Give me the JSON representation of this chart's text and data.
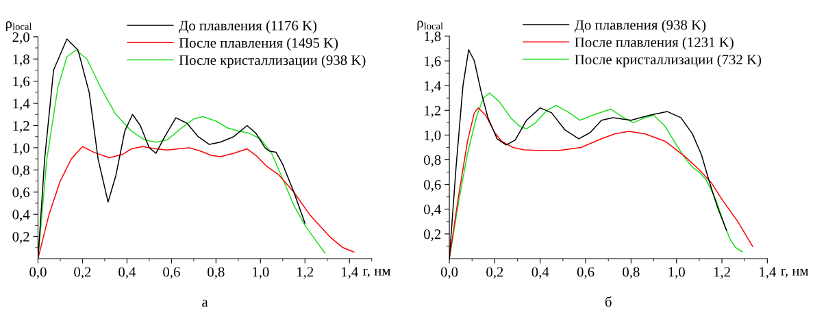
{
  "chart_data": [
    {
      "type": "line",
      "ylabel": "ρ$_{local}$",
      "xlabel": "r, нм",
      "annotations": [
        "а"
      ],
      "legend": "top right",
      "grid": false,
      "xlim": [
        0,
        1.5
      ],
      "xticks": [
        {
          "value": 0,
          "label": "0,0"
        },
        {
          "value": 0.2,
          "label": "0,2"
        },
        {
          "value": 0.4,
          "label": "0,4"
        },
        {
          "value": 0.6,
          "label": "0,6"
        },
        {
          "value": 0.8,
          "label": "0,8"
        },
        {
          "value": 1.0,
          "label": "1,0"
        },
        {
          "value": 1.2,
          "label": "1,2"
        },
        {
          "value": 1.4,
          "label": "1,4"
        }
      ],
      "ylim": [
        0,
        2.0
      ],
      "yticks": [
        {
          "value": 0.2,
          "label": "0,2"
        },
        {
          "value": 0.4,
          "label": "0,4"
        },
        {
          "value": 0.6,
          "label": "0,6"
        },
        {
          "value": 0.8,
          "label": "0,8"
        },
        {
          "value": 1.0,
          "label": "1,0"
        },
        {
          "value": 1.2,
          "label": "1,2"
        },
        {
          "value": 1.4,
          "label": "1,4"
        },
        {
          "value": 1.6,
          "label": "1,6"
        },
        {
          "value": 1.8,
          "label": "1,8"
        },
        {
          "value": 2.0,
          "label": "2,0"
        }
      ],
      "series": [
        {
          "name": "До плавления (1176 K)",
          "color": "#000000",
          "x": [
            0,
            0.03,
            0.07,
            0.13,
            0.18,
            0.23,
            0.27,
            0.315,
            0.35,
            0.39,
            0.425,
            0.46,
            0.5,
            0.53,
            0.57,
            0.62,
            0.67,
            0.72,
            0.77,
            0.82,
            0.88,
            0.94,
            0.98,
            1.02,
            1.04,
            1.07,
            1.1,
            1.15,
            1.2
          ],
          "values": [
            0,
            0.9,
            1.7,
            1.98,
            1.88,
            1.5,
            0.9,
            0.51,
            0.75,
            1.15,
            1.3,
            1.2,
            1.0,
            0.95,
            1.1,
            1.27,
            1.22,
            1.1,
            1.03,
            1.05,
            1.1,
            1.2,
            1.13,
            1.0,
            0.97,
            0.96,
            0.85,
            0.6,
            0.32
          ]
        },
        {
          "name": "После плавления (1495 K)",
          "color": "#ff0000",
          "x": [
            0,
            0.05,
            0.1,
            0.15,
            0.2,
            0.25,
            0.32,
            0.38,
            0.42,
            0.47,
            0.53,
            0.58,
            0.63,
            0.68,
            0.73,
            0.78,
            0.82,
            0.88,
            0.94,
            0.98,
            1.03,
            1.08,
            1.15,
            1.22,
            1.31,
            1.37,
            1.42
          ],
          "values": [
            0,
            0.4,
            0.7,
            0.9,
            1.01,
            0.96,
            0.91,
            0.94,
            0.99,
            1.01,
            0.99,
            0.98,
            0.99,
            1.0,
            0.97,
            0.93,
            0.92,
            0.95,
            0.99,
            0.93,
            0.83,
            0.76,
            0.6,
            0.4,
            0.2,
            0.1,
            0.06
          ]
        },
        {
          "name": "После кристаллизации (938 K)",
          "color": "#1fdf1f",
          "x": [
            0,
            0.04,
            0.09,
            0.13,
            0.17,
            0.22,
            0.28,
            0.35,
            0.42,
            0.48,
            0.53,
            0.58,
            0.64,
            0.7,
            0.74,
            0.8,
            0.85,
            0.9,
            0.95,
            1.0,
            1.05,
            1.1,
            1.15,
            1.2,
            1.25,
            1.29
          ],
          "values": [
            0,
            0.9,
            1.55,
            1.82,
            1.88,
            1.8,
            1.55,
            1.3,
            1.15,
            1.07,
            1.05,
            1.07,
            1.17,
            1.26,
            1.28,
            1.24,
            1.18,
            1.15,
            1.13,
            1.08,
            0.95,
            0.72,
            0.48,
            0.3,
            0.16,
            0.05
          ]
        }
      ]
    },
    {
      "type": "line",
      "ylabel": "ρ$_{local}$",
      "xlabel": "r, нм",
      "annotations": [
        "б"
      ],
      "legend": "top right",
      "grid": false,
      "xlim": [
        0,
        1.4
      ],
      "xticks": [
        {
          "value": 0,
          "label": "0,0"
        },
        {
          "value": 0.2,
          "label": "0,2"
        },
        {
          "value": 0.4,
          "label": "0,4"
        },
        {
          "value": 0.6,
          "label": "0,6"
        },
        {
          "value": 0.8,
          "label": "0,8"
        },
        {
          "value": 1.0,
          "label": "1,0"
        },
        {
          "value": 1.2,
          "label": "1,2"
        },
        {
          "value": 1.4,
          "label": "1,4"
        }
      ],
      "ylim": [
        0,
        1.8
      ],
      "yticks": [
        {
          "value": 0.2,
          "label": "0,2"
        },
        {
          "value": 0.4,
          "label": "0,4"
        },
        {
          "value": 0.6,
          "label": "0,6"
        },
        {
          "value": 0.8,
          "label": "0,8"
        },
        {
          "value": 1.0,
          "label": "1,0"
        },
        {
          "value": 1.2,
          "label": "1,2"
        },
        {
          "value": 1.4,
          "label": "1,4"
        },
        {
          "value": 1.6,
          "label": "1,6"
        },
        {
          "value": 1.8,
          "label": "1,8"
        }
      ],
      "series": [
        {
          "name": "До плавления (938 K)",
          "color": "#000000",
          "x": [
            0,
            0.03,
            0.06,
            0.085,
            0.11,
            0.14,
            0.17,
            0.21,
            0.25,
            0.29,
            0.34,
            0.4,
            0.45,
            0.51,
            0.57,
            0.62,
            0.67,
            0.72,
            0.8,
            0.88,
            0.96,
            1.02,
            1.07,
            1.11,
            1.145,
            1.18,
            1.22
          ],
          "values": [
            0,
            0.75,
            1.4,
            1.69,
            1.6,
            1.35,
            1.14,
            0.97,
            0.92,
            0.96,
            1.12,
            1.22,
            1.18,
            1.04,
            0.97,
            1.02,
            1.12,
            1.14,
            1.12,
            1.16,
            1.19,
            1.14,
            1.01,
            0.84,
            0.62,
            0.42,
            0.23
          ]
        },
        {
          "name": "После плавления (1231 K)",
          "color": "#ff0000",
          "x": [
            0,
            0.04,
            0.08,
            0.11,
            0.127,
            0.16,
            0.2,
            0.23,
            0.28,
            0.33,
            0.4,
            0.48,
            0.58,
            0.67,
            0.73,
            0.79,
            0.86,
            0.95,
            1.035,
            1.1,
            1.155,
            1.2,
            1.27,
            1.335
          ],
          "values": [
            0,
            0.5,
            0.95,
            1.18,
            1.22,
            1.16,
            1.02,
            0.95,
            0.9,
            0.88,
            0.875,
            0.875,
            0.9,
            0.97,
            1.01,
            1.03,
            1.01,
            0.95,
            0.83,
            0.72,
            0.61,
            0.48,
            0.3,
            0.1
          ]
        },
        {
          "name": "После кристаллизации (732 K)",
          "color": "#1fdf1f",
          "x": [
            0,
            0.04,
            0.08,
            0.12,
            0.15,
            0.177,
            0.22,
            0.27,
            0.31,
            0.34,
            0.38,
            0.43,
            0.47,
            0.52,
            0.575,
            0.63,
            0.71,
            0.76,
            0.81,
            0.86,
            0.9,
            0.95,
            1.0,
            1.035,
            1.07,
            1.1,
            1.13,
            1.175,
            1.21,
            1.235,
            1.26,
            1.29
          ],
          "values": [
            0,
            0.45,
            0.85,
            1.15,
            1.3,
            1.34,
            1.27,
            1.14,
            1.07,
            1.05,
            1.1,
            1.2,
            1.24,
            1.19,
            1.12,
            1.16,
            1.21,
            1.15,
            1.1,
            1.14,
            1.16,
            1.07,
            0.92,
            0.82,
            0.74,
            0.7,
            0.64,
            0.47,
            0.28,
            0.16,
            0.09,
            0.055
          ]
        }
      ]
    }
  ]
}
